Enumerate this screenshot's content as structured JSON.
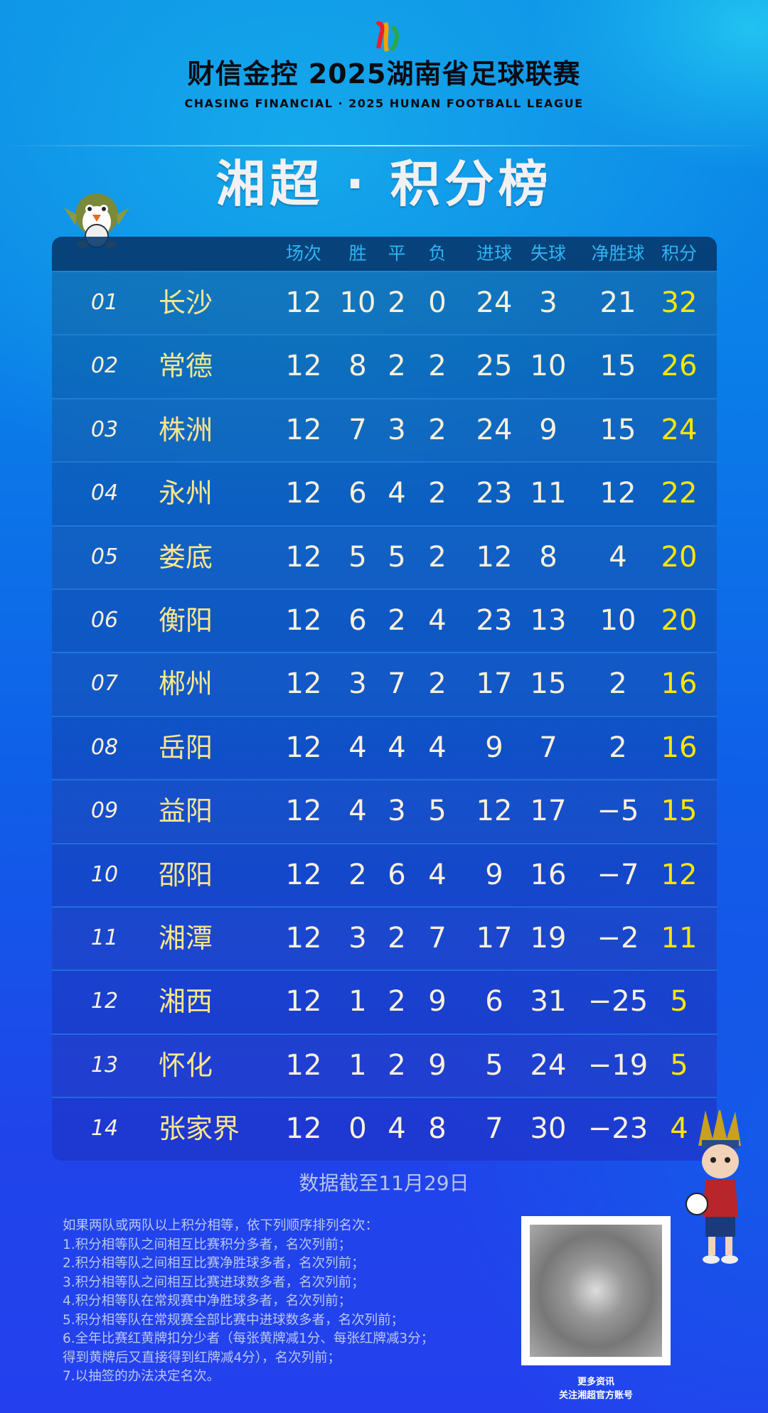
{
  "brand": {
    "cn": "财信金控 2025湖南省足球联赛",
    "en": "CHASING FINANCIAL  ·  2025 HUNAN FOOTBALL LEAGUE"
  },
  "title": "湘超 · 积分榜",
  "colors": {
    "accent_header": "#2fb4f2",
    "team": "#fde68a",
    "points": "#ffe600",
    "value": "#fbf1dc"
  },
  "table": {
    "headers": [
      "场次",
      "胜",
      "平",
      "负",
      "进球",
      "失球",
      "净胜球",
      "积分"
    ],
    "rows": [
      {
        "rank": "01",
        "team": "长沙",
        "played": "12",
        "won": "10",
        "drawn": "2",
        "lost": "0",
        "gf": "24",
        "ga": "3",
        "gd": "21",
        "pts": "32"
      },
      {
        "rank": "02",
        "team": "常德",
        "played": "12",
        "won": "8",
        "drawn": "2",
        "lost": "2",
        "gf": "25",
        "ga": "10",
        "gd": "15",
        "pts": "26"
      },
      {
        "rank": "03",
        "team": "株洲",
        "played": "12",
        "won": "7",
        "drawn": "3",
        "lost": "2",
        "gf": "24",
        "ga": "9",
        "gd": "15",
        "pts": "24"
      },
      {
        "rank": "04",
        "team": "永州",
        "played": "12",
        "won": "6",
        "drawn": "4",
        "lost": "2",
        "gf": "23",
        "ga": "11",
        "gd": "12",
        "pts": "22"
      },
      {
        "rank": "05",
        "team": "娄底",
        "played": "12",
        "won": "5",
        "drawn": "5",
        "lost": "2",
        "gf": "12",
        "ga": "8",
        "gd": "4",
        "pts": "20"
      },
      {
        "rank": "06",
        "team": "衡阳",
        "played": "12",
        "won": "6",
        "drawn": "2",
        "lost": "4",
        "gf": "23",
        "ga": "13",
        "gd": "10",
        "pts": "20"
      },
      {
        "rank": "07",
        "team": "郴州",
        "played": "12",
        "won": "3",
        "drawn": "7",
        "lost": "2",
        "gf": "17",
        "ga": "15",
        "gd": "2",
        "pts": "16"
      },
      {
        "rank": "08",
        "team": "岳阳",
        "played": "12",
        "won": "4",
        "drawn": "4",
        "lost": "4",
        "gf": "9",
        "ga": "7",
        "gd": "2",
        "pts": "16"
      },
      {
        "rank": "09",
        "team": "益阳",
        "played": "12",
        "won": "4",
        "drawn": "3",
        "lost": "5",
        "gf": "12",
        "ga": "17",
        "gd": "−5",
        "pts": "15"
      },
      {
        "rank": "10",
        "team": "邵阳",
        "played": "12",
        "won": "2",
        "drawn": "6",
        "lost": "4",
        "gf": "9",
        "ga": "16",
        "gd": "−7",
        "pts": "12"
      },
      {
        "rank": "11",
        "team": "湘潭",
        "played": "12",
        "won": "3",
        "drawn": "2",
        "lost": "7",
        "gf": "17",
        "ga": "19",
        "gd": "−2",
        "pts": "11"
      },
      {
        "rank": "12",
        "team": "湘西",
        "played": "12",
        "won": "1",
        "drawn": "2",
        "lost": "9",
        "gf": "6",
        "ga": "31",
        "gd": "−25",
        "pts": "5"
      },
      {
        "rank": "13",
        "team": "怀化",
        "played": "12",
        "won": "1",
        "drawn": "2",
        "lost": "9",
        "gf": "5",
        "ga": "24",
        "gd": "−19",
        "pts": "5"
      },
      {
        "rank": "14",
        "team": "张家界",
        "played": "12",
        "won": "0",
        "drawn": "4",
        "lost": "8",
        "gf": "7",
        "ga": "30",
        "gd": "−23",
        "pts": "4"
      }
    ]
  },
  "as_of": "数据截至11月29日",
  "rules": [
    "如果两队或两队以上积分相等，依下列顺序排列名次：",
    "1.积分相等队之间相互比赛积分多者，名次列前；",
    "2.积分相等队之间相互比赛净胜球多者，名次列前；",
    "3.积分相等队之间相互比赛进球数多者，名次列前；",
    "4.积分相等队在常规赛中净胜球多者，名次列前；",
    "5.积分相等队在常规赛全部比赛中进球数多者，名次列前；",
    "6.全年比赛红黄牌扣分少者（每张黄牌减1分、每张红牌减3分；",
    "得到黄牌后又直接得到红牌减4分），名次列前；",
    "7.以抽签的办法决定名次。"
  ],
  "qr": {
    "line1": "更多资讯",
    "line2": "关注湘超官方账号"
  }
}
